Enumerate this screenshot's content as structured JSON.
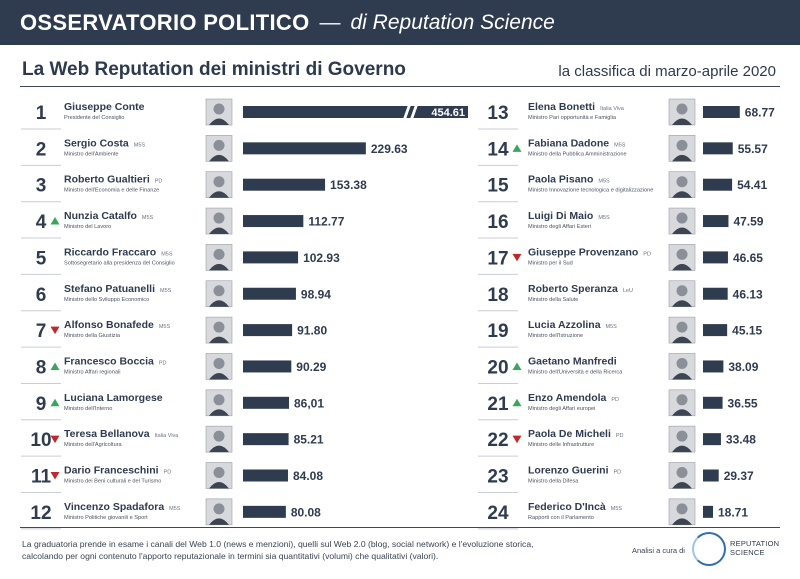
{
  "header": {
    "title": "OSSERVATORIO POLITICO",
    "dash": "—",
    "brand": "di Reputation Science"
  },
  "subtitle": "La Web Reputation dei ministri di Governo",
  "period": "la classifica di marzo-aprile 2020",
  "colors": {
    "bar": "#2f3b4f",
    "up": "#3aa55c",
    "down": "#c0282d",
    "navy": "#2f3b4f"
  },
  "chart_data": {
    "type": "bar",
    "max_value": 454.61,
    "break_value_note": "454.61",
    "rankings": [
      {
        "rank": "1",
        "name": "Giuseppe Conte",
        "party": "",
        "role": "Presidente del Consiglio",
        "value": 454.61,
        "value_label": "454.61",
        "trend": "none"
      },
      {
        "rank": "2",
        "name": "Sergio Costa",
        "party": "M5S",
        "role": "Ministro dell'Ambiente",
        "value": 229.63,
        "value_label": "229.63",
        "trend": "none"
      },
      {
        "rank": "3",
        "name": "Roberto Gualtieri",
        "party": "PD",
        "role": "Ministro dell'Economia e delle Finanze",
        "value": 153.38,
        "value_label": "153.38",
        "trend": "none"
      },
      {
        "rank": "4",
        "name": "Nunzia Catalfo",
        "party": "M5S",
        "role": "Ministro del Lavoro",
        "value": 112.77,
        "value_label": "112.77",
        "trend": "up"
      },
      {
        "rank": "5",
        "name": "Riccardo Fraccaro",
        "party": "M5S",
        "role": "Sottosegretario alla presidenza del Consiglio",
        "value": 102.93,
        "value_label": "102.93",
        "trend": "none"
      },
      {
        "rank": "6",
        "name": "Stefano Patuanelli",
        "party": "M5S",
        "role": "Ministro dello Sviluppo Economico",
        "value": 98.94,
        "value_label": "98.94",
        "trend": "none"
      },
      {
        "rank": "7",
        "name": "Alfonso Bonafede",
        "party": "M5S",
        "role": "Ministro della Giustizia",
        "value": 91.8,
        "value_label": "91.80",
        "trend": "down"
      },
      {
        "rank": "8",
        "name": "Francesco Boccia",
        "party": "PD",
        "role": "Ministro Affari regionali",
        "value": 90.29,
        "value_label": "90.29",
        "trend": "up"
      },
      {
        "rank": "9",
        "name": "Luciana Lamorgese",
        "party": "",
        "role": "Ministro dell'Interno",
        "value": 86.01,
        "value_label": "86,01",
        "trend": "up"
      },
      {
        "rank": "10",
        "name": "Teresa Bellanova",
        "party": "Italia Viva",
        "role": "Ministro dell'Agricoltura",
        "value": 85.21,
        "value_label": "85.21",
        "trend": "down"
      },
      {
        "rank": "11",
        "name": "Dario Franceschini",
        "party": "PD",
        "role": "Ministro dei Beni culturali e del Turismo",
        "value": 84.08,
        "value_label": "84.08",
        "trend": "down"
      },
      {
        "rank": "12",
        "name": "Vincenzo Spadafora",
        "party": "M5S",
        "role": "Ministro Politiche giovanili e Sport",
        "value": 80.08,
        "value_label": "80.08",
        "trend": "none"
      },
      {
        "rank": "13",
        "name": "Elena Bonetti",
        "party": "Italia Viva",
        "role": "Ministro Pari opportunità e Famiglia",
        "value": 68.77,
        "value_label": "68.77",
        "trend": "none"
      },
      {
        "rank": "14",
        "name": "Fabiana Dadone",
        "party": "M5S",
        "role": "Ministro della Pubblica Amministrazione",
        "value": 55.57,
        "value_label": "55.57",
        "trend": "up"
      },
      {
        "rank": "15",
        "name": "Paola Pisano",
        "party": "M5S",
        "role": "Ministro Innovazione tecnologica e digitalizzazione",
        "value": 54.41,
        "value_label": "54.41",
        "trend": "none"
      },
      {
        "rank": "16",
        "name": "Luigi Di Maio",
        "party": "M5S",
        "role": "Ministro degli Affari Esteri",
        "value": 47.59,
        "value_label": "47.59",
        "trend": "none"
      },
      {
        "rank": "17",
        "name": "Giuseppe Provenzano",
        "party": "PD",
        "role": "Ministro per il Sud",
        "value": 46.65,
        "value_label": "46.65",
        "trend": "down"
      },
      {
        "rank": "18",
        "name": "Roberto Speranza",
        "party": "LeU",
        "role": "Ministro della Salute",
        "value": 46.13,
        "value_label": "46.13",
        "trend": "none"
      },
      {
        "rank": "19",
        "name": "Lucia Azzolina",
        "party": "M5S",
        "role": "Ministro dell'Istruzione",
        "value": 45.15,
        "value_label": "45.15",
        "trend": "none"
      },
      {
        "rank": "20",
        "name": "Gaetano Manfredi",
        "party": "",
        "role": "Ministro dell'Università e della Ricerca",
        "value": 38.09,
        "value_label": "38.09",
        "trend": "up"
      },
      {
        "rank": "21",
        "name": "Enzo Amendola",
        "party": "PD",
        "role": "Ministro degli Affari europei",
        "value": 36.55,
        "value_label": "36.55",
        "trend": "up"
      },
      {
        "rank": "22",
        "name": "Paola De Micheli",
        "party": "PD",
        "role": "Ministro delle Infrastrutture",
        "value": 33.48,
        "value_label": "33.48",
        "trend": "down"
      },
      {
        "rank": "23",
        "name": "Lorenzo Guerini",
        "party": "PD",
        "role": "Ministro della Difesa",
        "value": 29.37,
        "value_label": "29.37",
        "trend": "none"
      },
      {
        "rank": "24",
        "name": "Federico D'Incà",
        "party": "M5S",
        "role": "Rapporti con il Parlamento",
        "value": 18.71,
        "value_label": "18.71",
        "trend": "none"
      }
    ]
  },
  "footer": {
    "text": "La graduatoria prende in esame i canali del Web 1.0 (news e menzioni), quelli sul Web 2.0 (blog, social network) e l'evoluzione storica, calcolando per ogni contenuto l'apporto reputazionale in termini sia quantitativi (volumi) che qualitativi (valori).",
    "credit": "Analisi a cura di",
    "logo_line1": "REPUTATION",
    "logo_line2": "SCIENCE"
  }
}
